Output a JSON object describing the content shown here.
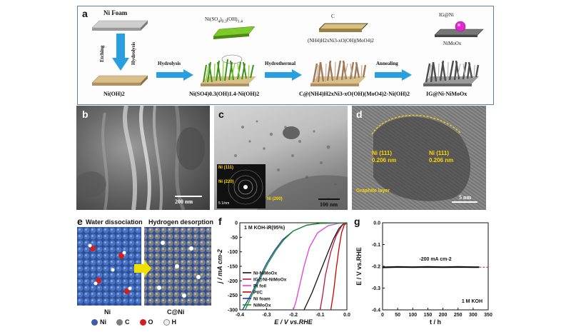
{
  "panel_a": {
    "label": "a",
    "ni_foam": "Ni Foam",
    "etching": "Etching",
    "hydrolysis_v": "Hydrolysis",
    "step1": "Hydrolysis",
    "step2": "Hydrothermal",
    "step3": "Annealing",
    "formula1": "Ni(SO",
    "formula1b": "4",
    "formula1c": ")",
    "formula1d": "0.3",
    "formula1e": "(OH)",
    "formula1f": "1.4",
    "c_label": "C",
    "ammonium": "(NH4)H2xNi3-xO(OH)(MoO4)2",
    "ig_ni": "IG@Ni",
    "nimoox": "NiMoOx",
    "cap1": "Ni(OH)2",
    "cap2": "Ni(SO4)0.3(OH)1.4-Ni(OH)2",
    "cap3": "C@(NH4)H2xNi3-xO(OH)(MoO4)2-Ni(OH)2",
    "cap4": "IG@Ni-NiMoOx"
  },
  "panel_b": {
    "label": "b",
    "scale": "200 nm"
  },
  "panel_c": {
    "label": "c",
    "scale": "100 nm",
    "inset_scale": "5 1/nm",
    "r1": "Ni (111)",
    "r2": "Ni (220)",
    "r3": "Ni (200)"
  },
  "panel_d": {
    "label": "d",
    "ni1": "Ni (111)",
    "d1": "0.206 nm",
    "ni2": "Ni (111)",
    "d2": "0.206 nm",
    "graphite": "Graphite layer",
    "scale": "5 nm"
  },
  "panel_e": {
    "label": "e",
    "t1": "Water dissociation",
    "t2": "Hydrogen desorption",
    "s1": "Ni",
    "s2": "C@Ni",
    "legend": [
      {
        "sym": "Ni",
        "color": "#3b5ea8"
      },
      {
        "sym": "C",
        "color": "#7d7d7d"
      },
      {
        "sym": "O",
        "color": "#d21f1f"
      },
      {
        "sym": "H",
        "color": "#eeeeee"
      }
    ]
  },
  "chart_data": [
    {
      "type": "line",
      "label": "f",
      "title": "1 M KOH-iR(95%)",
      "xlabel": "E / V vs.RHE",
      "ylabel": "j / mA cm-2",
      "xlim": [
        -0.4,
        0.0
      ],
      "ylim": [
        -300,
        0
      ],
      "xticks": [
        "-0.4",
        "-0.3",
        "-0.2",
        "-0.1",
        "0.0"
      ],
      "yticks": [
        "0",
        "-50",
        "-100",
        "-150",
        "-200",
        "-250",
        "-300"
      ],
      "series": [
        {
          "name": "Ni-NiMoOx",
          "color": "#111111",
          "x": [
            -0.16,
            -0.13,
            -0.1,
            -0.07,
            -0.05,
            -0.03,
            -0.015,
            0.0
          ],
          "y": [
            -300,
            -240,
            -170,
            -100,
            -55,
            -20,
            -5,
            0
          ]
        },
        {
          "name": "IG@Ni-NiMoOx",
          "color": "#c0143c",
          "x": [
            -0.1,
            -0.09,
            -0.08,
            -0.06,
            -0.04,
            -0.02,
            -0.01,
            0.0
          ],
          "y": [
            -300,
            -245,
            -180,
            -100,
            -45,
            -12,
            -3,
            0
          ]
        },
        {
          "name": "Pt foil",
          "color": "#e83ae0",
          "x": [
            -0.2,
            -0.19,
            -0.175,
            -0.16,
            -0.14,
            -0.11,
            -0.07,
            -0.03,
            0.0
          ],
          "y": [
            -300,
            -270,
            -210,
            -150,
            -85,
            -35,
            -10,
            -2,
            0
          ]
        },
        {
          "name": "Pt/C",
          "color": "#cc0000",
          "x": [
            -0.06,
            -0.05,
            -0.04,
            -0.03,
            -0.02,
            -0.01,
            0.0
          ],
          "y": [
            -300,
            -240,
            -160,
            -90,
            -35,
            -8,
            0
          ]
        },
        {
          "name": "Ni foam",
          "color": "#1b3fb0",
          "x": [
            -0.39,
            -0.36,
            -0.33,
            -0.3,
            -0.27,
            -0.24,
            -0.2,
            -0.15,
            -0.1,
            0.0
          ],
          "y": [
            -300,
            -250,
            -195,
            -140,
            -95,
            -58,
            -28,
            -8,
            -2,
            0
          ]
        },
        {
          "name": "NiMoOx",
          "color": "#1a8f2a",
          "x": [
            -0.38,
            -0.355,
            -0.325,
            -0.295,
            -0.265,
            -0.235,
            -0.2,
            -0.15,
            -0.1,
            0.0
          ],
          "y": [
            -300,
            -250,
            -195,
            -140,
            -95,
            -58,
            -28,
            -8,
            -2,
            0
          ]
        }
      ]
    },
    {
      "type": "line",
      "label": "g",
      "xlabel": "t / h",
      "ylabel": "E / V vs.RHE",
      "xlim": [
        0,
        350
      ],
      "ylim": [
        -0.4,
        0.0
      ],
      "xticks": [
        "0",
        "50",
        "100",
        "150",
        "200",
        "250",
        "300",
        "350"
      ],
      "yticks": [
        "0.0",
        "-0.1",
        "-0.2",
        "-0.3",
        "-0.4"
      ],
      "annotation": "-200 mA cm-2",
      "electrolyte": "1 M KOH",
      "series": [
        {
          "name": "",
          "color": "#111111",
          "x": [
            0,
            50,
            100,
            150,
            200,
            250,
            300,
            320
          ],
          "y": [
            -0.205,
            -0.203,
            -0.204,
            -0.203,
            -0.204,
            -0.203,
            -0.204,
            -0.204
          ]
        }
      ]
    }
  ]
}
